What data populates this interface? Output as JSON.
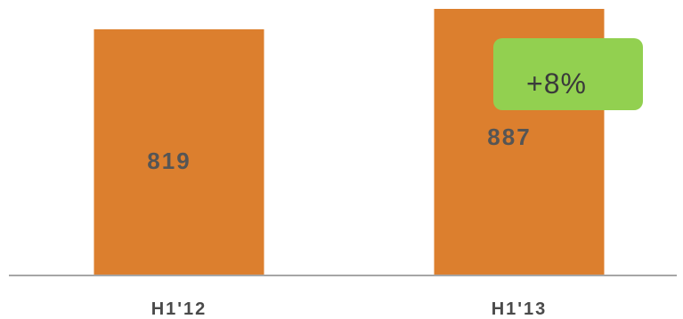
{
  "chart_data": {
    "type": "bar",
    "title": "",
    "xlabel": "",
    "ylabel": "",
    "categories": [
      "H1'12",
      "H1'13"
    ],
    "values": [
      819,
      887
    ],
    "data_labels": [
      "819",
      "887"
    ],
    "ylim": [
      0,
      887
    ],
    "grid": false,
    "legend": "none",
    "annotations": [
      {
        "text": "+8%",
        "attached_to": "H1'13"
      }
    ]
  },
  "colors": {
    "bar": "#dc7f2e",
    "bar_label": "#555555",
    "category_label": "#4a4a4a",
    "axis": "#a6a6a6",
    "badge_fill": "#92d050",
    "badge_text": "#3a3a3a"
  }
}
